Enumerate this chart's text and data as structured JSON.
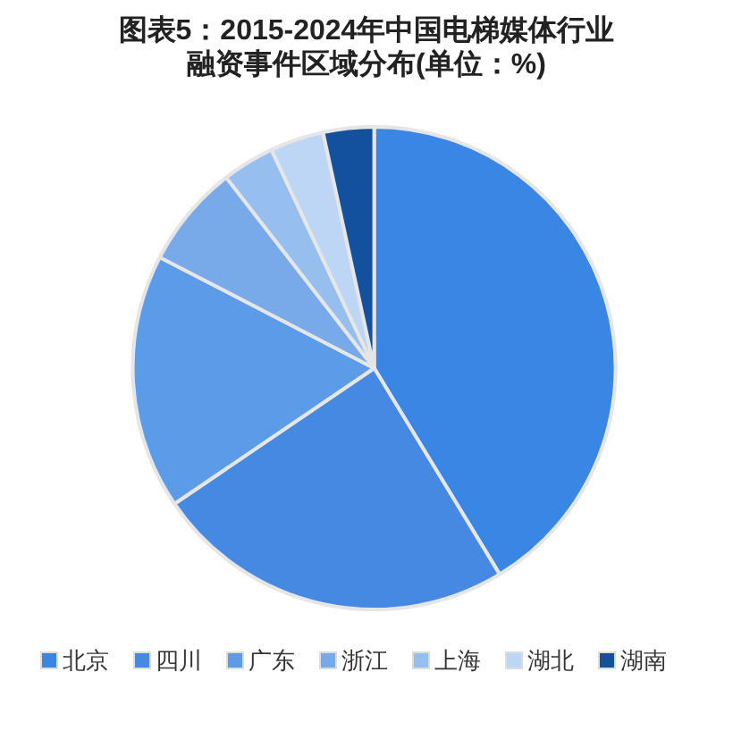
{
  "chart_data": {
    "type": "pie",
    "title": "图表5：2015-2024年中国电梯媒体行业融资事件区域分布(单位：%)",
    "categories": [
      "北京",
      "四川",
      "广东",
      "浙江",
      "上海",
      "湖北",
      "湖南"
    ],
    "values": [
      41.3,
      24.2,
      17.1,
      6.9,
      3.5,
      3.6,
      3.4
    ],
    "colors": [
      "#3a86e4",
      "#4589e2",
      "#5b9be8",
      "#78aaea",
      "#96bff0",
      "#bdd6f5",
      "#13509e"
    ],
    "legend": "bottom"
  }
}
